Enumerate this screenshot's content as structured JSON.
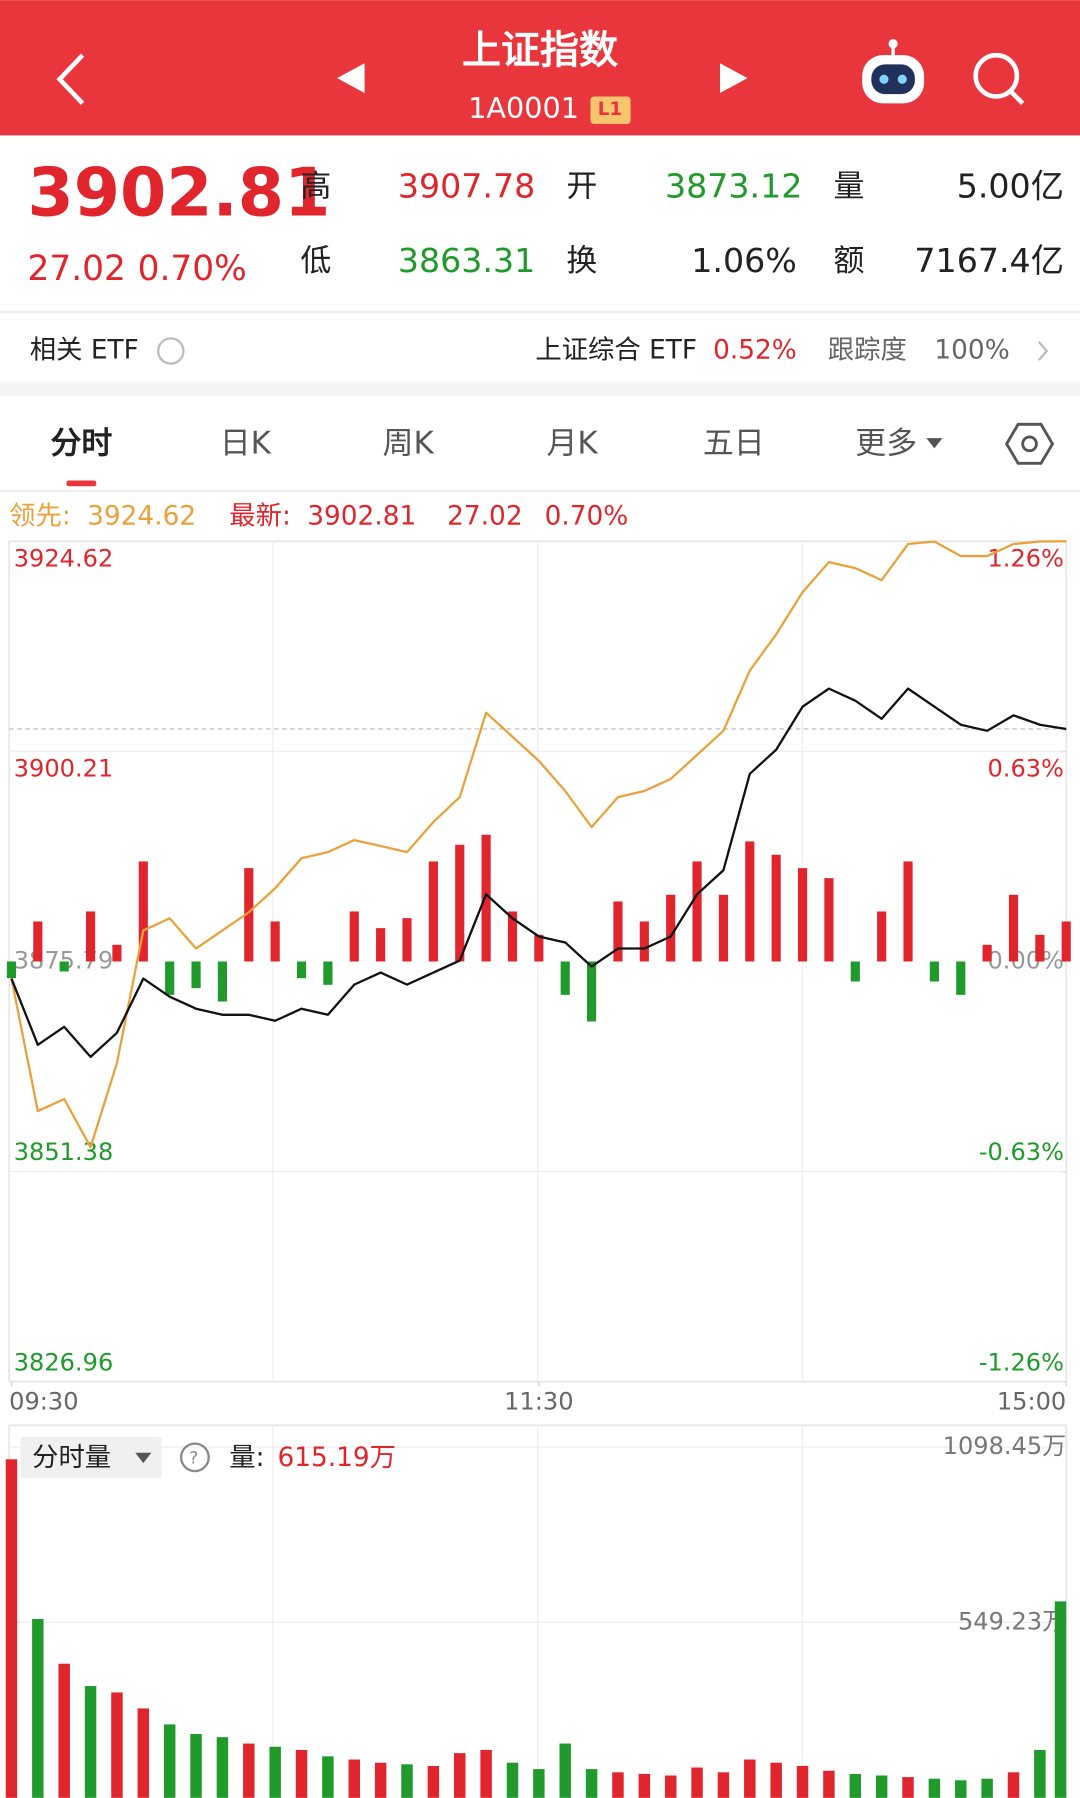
{
  "header": {
    "title": "上证指数",
    "code": "1A0001",
    "level": "L1"
  },
  "quote": {
    "price": 3902.81,
    "change": 27.02,
    "change_pct": "0.70%",
    "stats": [
      {
        "label": "高",
        "value": 3907.78
      },
      {
        "label": "开",
        "value": 3873.12
      },
      {
        "label": "量",
        "value": "5.00亿"
      },
      {
        "label": "低",
        "value": 3863.31
      },
      {
        "label": "换",
        "value": "1.06%"
      },
      {
        "label": "额",
        "value": "7167.4亿"
      }
    ]
  },
  "etf": {
    "label": "相关 ETF",
    "name": "上证综合 ETF",
    "change": "0.52%",
    "track_label": "跟踪度",
    "track_value": "100%"
  },
  "tabs": [
    "分时",
    "日K",
    "周K",
    "月K",
    "五日",
    "更多"
  ],
  "legend": {
    "lead_label": "领先:",
    "lead": 3924.62,
    "latest_label": "最新:",
    "latest": 3902.81,
    "change": 27.02,
    "change_pct": "0.70%"
  },
  "chart": {
    "type": "line",
    "x": [
      0,
      6,
      12,
      18,
      24,
      30,
      36,
      42,
      48,
      54,
      60,
      66,
      72,
      78,
      84,
      90,
      96,
      102,
      108,
      114,
      120,
      126,
      132,
      138,
      144,
      150,
      156,
      162,
      168,
      174,
      180,
      186,
      192,
      198,
      204,
      210,
      216,
      222,
      228,
      234,
      240
    ],
    "xlim": [
      0,
      240
    ],
    "xticks": [
      {
        "value": 0,
        "label": "09:30"
      },
      {
        "value": 120,
        "label": "11:30"
      },
      {
        "value": 240,
        "label": "15:00"
      }
    ],
    "ylim": [
      3826.96,
      3924.62
    ],
    "yticks": [
      3924.62,
      3900.21,
      3875.79,
      3851.38,
      3826.96
    ],
    "y2lim": [
      -1.26,
      1.26
    ],
    "y2ticks": [
      {
        "value": 1.26,
        "label": "1.26%"
      },
      {
        "value": 0.63,
        "label": "0.63%"
      },
      {
        "value": 0,
        "label": "0.00%"
      },
      {
        "value": -0.63,
        "label": "-0.63%"
      },
      {
        "value": -1.26,
        "label": "-1.26%"
      }
    ],
    "series": [
      {
        "color": "#e8a23c",
        "values": [
          3873.8,
          3858.4,
          3859.8,
          3854.2,
          3864.0,
          3879.4,
          3880.8,
          3877.3,
          3879.4,
          3881.5,
          3884.3,
          3887.8,
          3888.5,
          3889.9,
          3889.2,
          3888.5,
          3892.0,
          3894.9,
          3904.7,
          3901.9,
          3899.1,
          3895.6,
          3891.4,
          3894.9,
          3895.6,
          3897.0,
          3899.8,
          3902.6,
          3909.6,
          3913.8,
          3918.7,
          3922.2,
          3921.5,
          3920.1,
          3924.3,
          3924.6,
          3922.9,
          3922.9,
          3924.3,
          3924.6,
          3924.62
        ]
      },
      {
        "color": "#111111",
        "values": [
          3873.8,
          3866.1,
          3868.2,
          3864.7,
          3867.5,
          3873.8,
          3871.7,
          3870.3,
          3869.6,
          3869.6,
          3868.9,
          3870.3,
          3869.6,
          3873.1,
          3874.5,
          3873.1,
          3874.5,
          3875.9,
          3883.6,
          3880.8,
          3878.7,
          3878.0,
          3875.2,
          3877.3,
          3877.3,
          3878.7,
          3883.6,
          3886.4,
          3897.6,
          3900.4,
          3905.4,
          3907.5,
          3906.1,
          3904.0,
          3907.5,
          3905.4,
          3903.3,
          3902.6,
          3904.4,
          3903.3,
          3902.81
        ]
      }
    ],
    "bars": {
      "axis": "y2",
      "values": [
        -0.05,
        0.12,
        -0.03,
        0.15,
        0.05,
        0.3,
        -0.1,
        -0.08,
        -0.12,
        0.28,
        0.12,
        -0.05,
        -0.07,
        0.15,
        0.1,
        0.13,
        0.3,
        0.35,
        0.38,
        0.15,
        0.08,
        -0.1,
        -0.18,
        0.18,
        0.12,
        0.2,
        0.3,
        0.2,
        0.36,
        0.32,
        0.28,
        0.25,
        -0.06,
        0.15,
        0.3,
        -0.06,
        -0.1,
        0.05,
        0.2,
        0.08,
        0.12
      ]
    }
  },
  "volume": {
    "type": "bar",
    "label": "分时量",
    "qty_label": "量:",
    "latest": "615.19万",
    "ylim": [
      0,
      1098.45
    ],
    "yticks": [
      {
        "value": 549.23,
        "label": "549.23万"
      },
      {
        "value": 1098.45,
        "label": "1098.45万"
      }
    ],
    "values": [
      1060,
      560,
      420,
      350,
      330,
      280,
      230,
      200,
      190,
      170,
      160,
      150,
      130,
      120,
      110,
      105,
      100,
      140,
      150,
      110,
      90,
      170,
      90,
      80,
      75,
      70,
      95,
      80,
      120,
      110,
      100,
      85,
      75,
      70,
      65,
      60,
      55,
      60,
      80,
      150,
      615.19
    ]
  }
}
